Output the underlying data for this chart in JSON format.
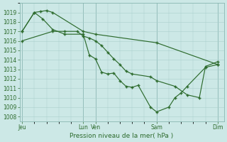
{
  "title": "Pression niveau de la mer( hPa )",
  "bg_color": "#cce8e6",
  "grid_color": "#aacfcc",
  "line_color": "#2d6b2d",
  "ylim": [
    1007.5,
    1020.0
  ],
  "yticks": [
    1008,
    1009,
    1010,
    1011,
    1012,
    1013,
    1014,
    1015,
    1016,
    1017,
    1018,
    1019
  ],
  "xlim": [
    -0.2,
    16.5
  ],
  "xtick_positions": [
    0.0,
    5.0,
    6.0,
    11.0,
    16.0
  ],
  "xtick_labels": [
    "Jeu",
    "Lun",
    "Ven",
    "Sam",
    "Dim"
  ],
  "series1_x": [
    0.0,
    1.0,
    1.5,
    2.0,
    2.5,
    5.0,
    6.0,
    11.0,
    16.0
  ],
  "series1_y": [
    1017.0,
    1019.0,
    1019.1,
    1019.2,
    1019.0,
    1017.0,
    1016.7,
    1015.8,
    1013.5
  ],
  "series2_x": [
    0.0,
    1.0,
    1.7,
    2.5,
    3.5,
    5.0,
    5.5,
    6.0,
    6.5,
    7.0,
    7.5,
    8.0,
    8.5,
    9.0,
    9.5,
    10.5,
    11.0,
    12.0,
    12.5,
    13.0,
    13.5,
    15.0,
    16.0
  ],
  "series2_y": [
    1017.0,
    1019.0,
    1018.3,
    1017.2,
    1016.7,
    1016.7,
    1014.5,
    1014.1,
    1012.7,
    1012.5,
    1012.6,
    1011.8,
    1011.2,
    1011.1,
    1011.3,
    1009.0,
    1008.5,
    1009.0,
    1010.0,
    1010.5,
    1011.2,
    1013.2,
    1013.5
  ],
  "series3_x": [
    0.0,
    2.5,
    3.5,
    4.5,
    5.0,
    5.5,
    6.0,
    6.5,
    7.0,
    7.5,
    8.0,
    8.5,
    9.0,
    10.5,
    11.0,
    12.5,
    13.5,
    14.5,
    15.0,
    16.0
  ],
  "series3_y": [
    1016.0,
    1017.0,
    1017.0,
    1017.0,
    1016.5,
    1016.3,
    1016.0,
    1015.5,
    1014.8,
    1014.1,
    1013.5,
    1012.8,
    1012.5,
    1012.2,
    1011.8,
    1011.2,
    1010.3,
    1010.0,
    1013.3,
    1013.8
  ]
}
